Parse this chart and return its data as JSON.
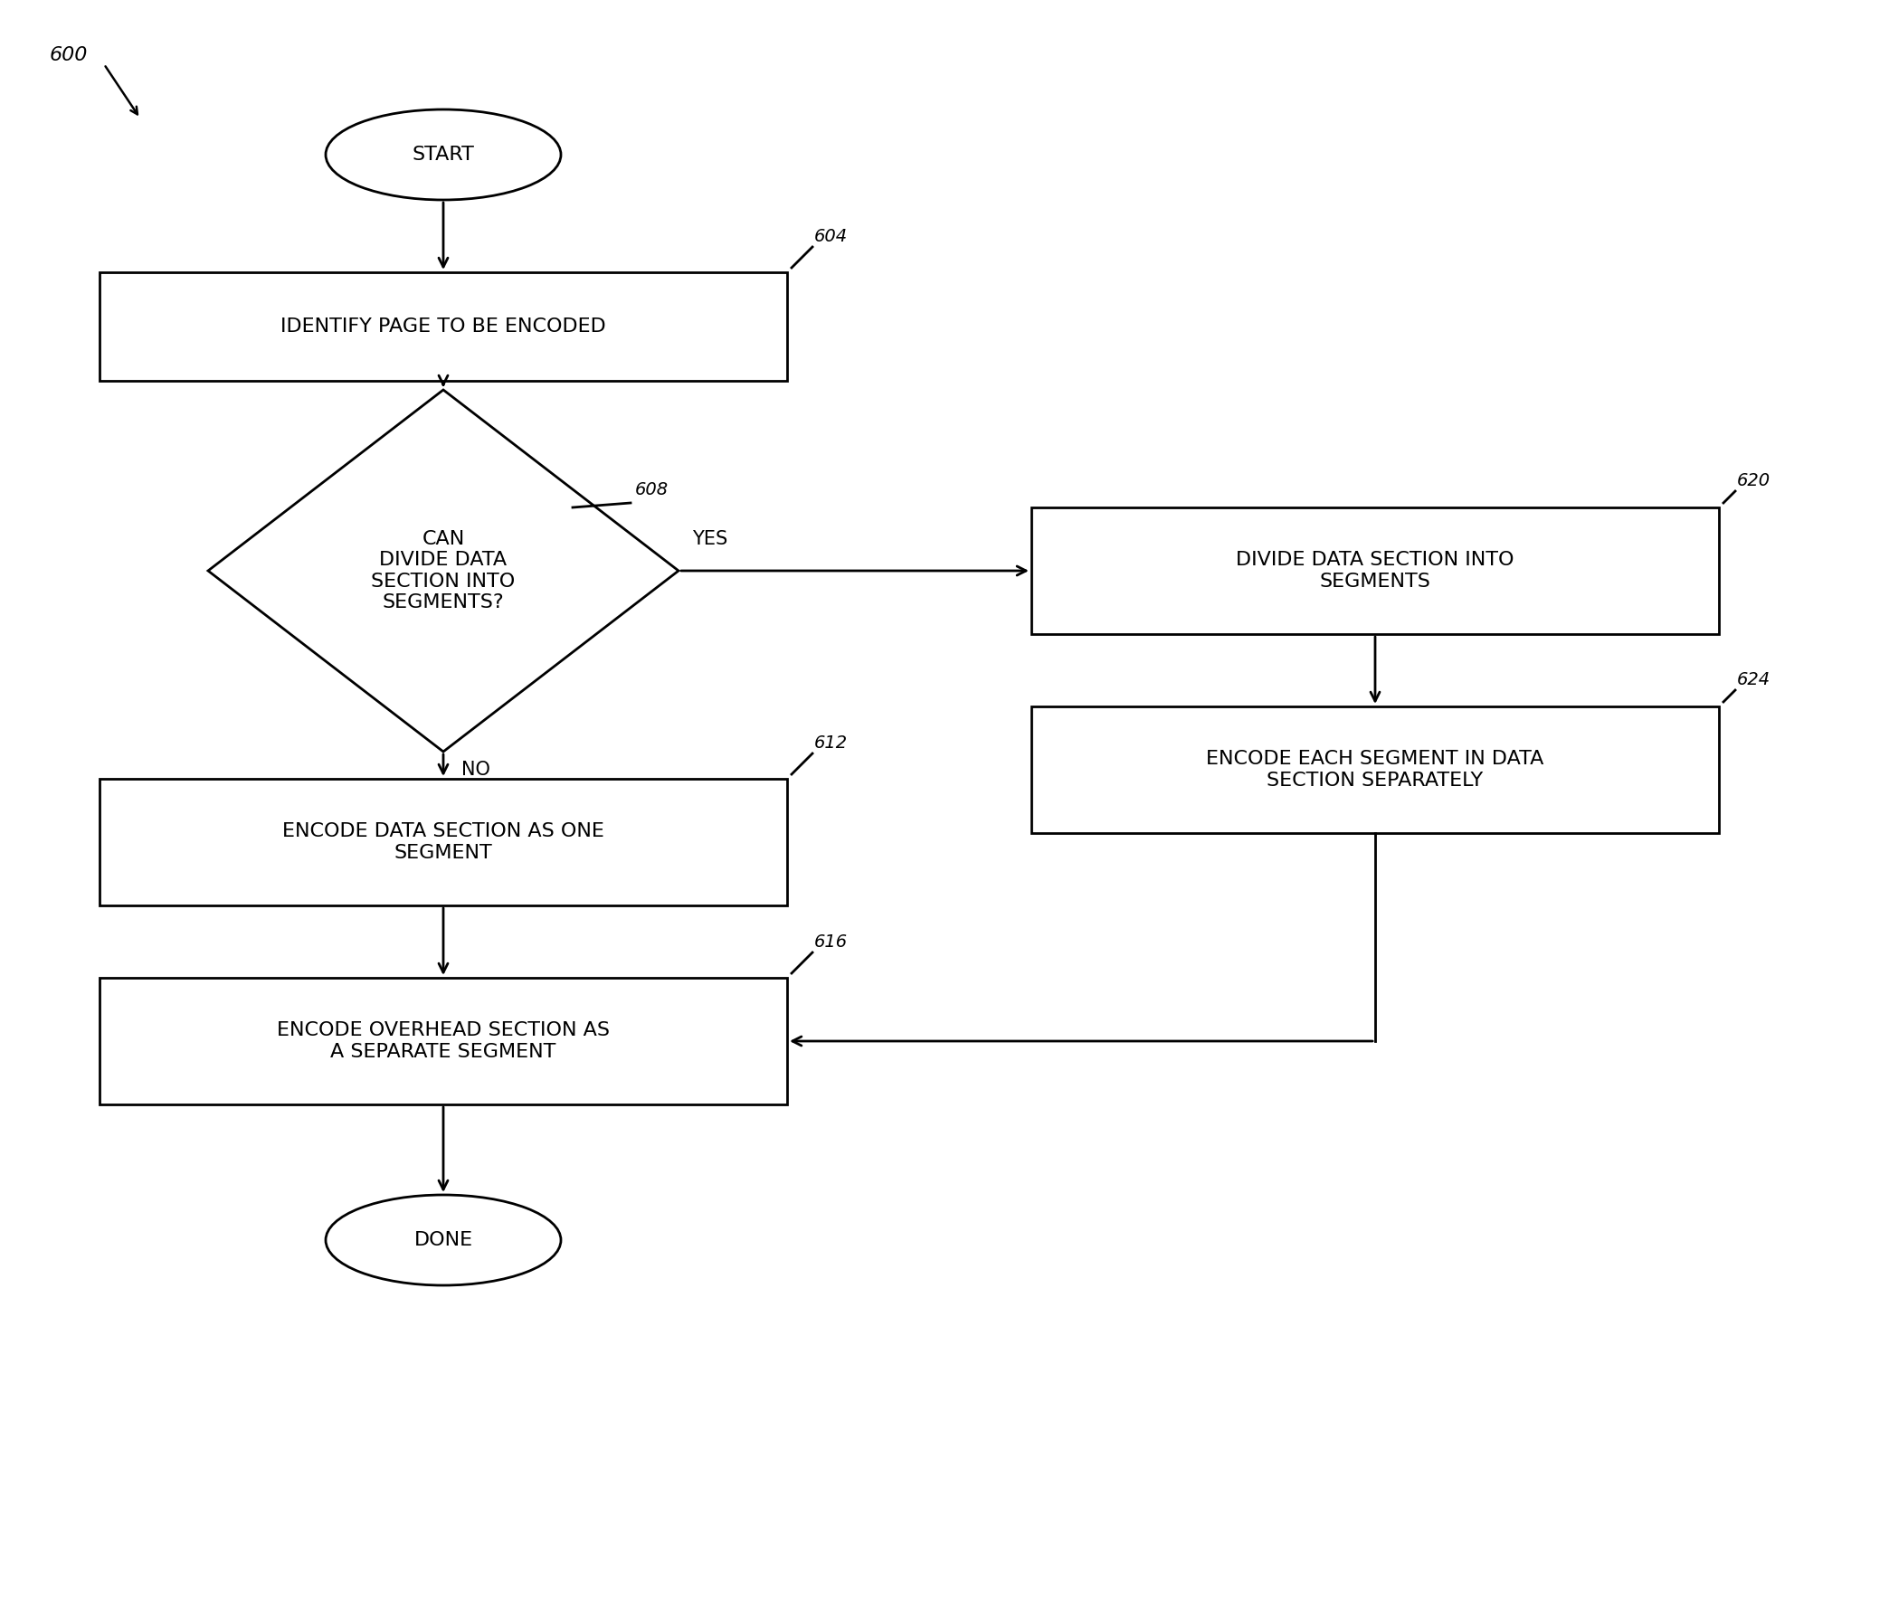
{
  "fig_width": 20.88,
  "fig_height": 17.91,
  "bg_color": "#ffffff",
  "label_600": "600",
  "label_604": "604",
  "label_608": "608",
  "label_612": "612",
  "label_616": "616",
  "label_620": "620",
  "label_624": "624",
  "start_text": "START",
  "done_text": "DONE",
  "box604_text": "IDENTIFY PAGE TO BE ENCODED",
  "box608_text": "CAN\nDIVIDE DATA\nSECTION INTO\nSEGMENTS?",
  "box612_text": "ENCODE DATA SECTION AS ONE\nSEGMENT",
  "box616_text": "ENCODE OVERHEAD SECTION AS\nA SEPARATE SEGMENT",
  "box620_text": "DIVIDE DATA SECTION INTO\nSEGMENTS",
  "box624_text": "ENCODE EACH SEGMENT IN DATA\nSECTION SEPARATELY",
  "yes_label": "YES",
  "no_label": "NO",
  "line_color": "#000000",
  "text_color": "#000000",
  "box_fill": "#ffffff",
  "box_edge": "#000000",
  "font_size_box": 16,
  "font_size_label": 15,
  "font_size_ref": 14,
  "font_size_terminal": 16
}
